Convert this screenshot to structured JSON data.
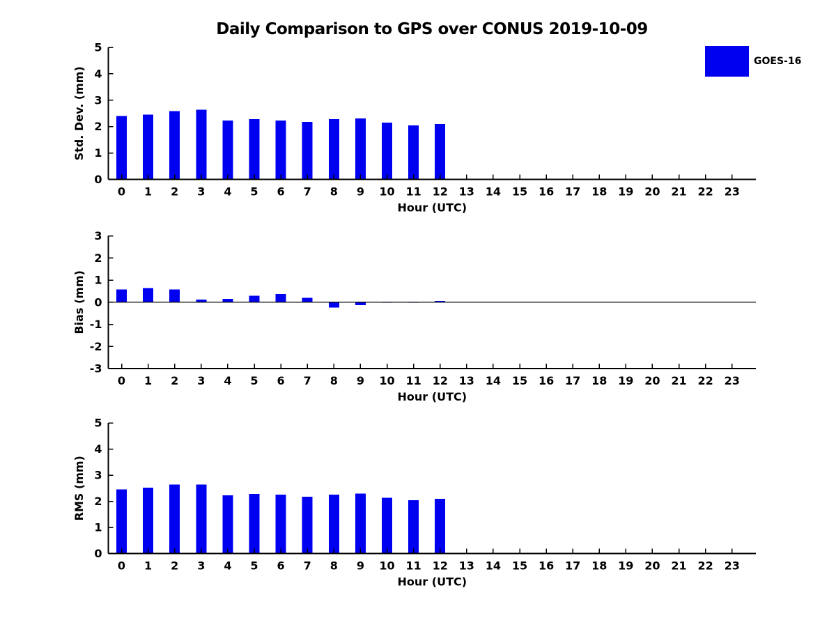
{
  "title": "Daily Comparison to GPS over CONUS 2019-10-09",
  "legend": {
    "label": "GOES-16"
  },
  "colors": {
    "bar": "#0000f0",
    "axis": "#000000",
    "text": "#000000",
    "background": "#ffffff"
  },
  "chart_data": [
    {
      "id": "std-dev",
      "type": "bar",
      "title": "Daily Comparison to GPS over CONUS 2019-10-09",
      "series_name": "GOES-16",
      "legend_position": "top-right",
      "xlabel": "Hour (UTC)",
      "ylabel": "Std. Dev. (mm)",
      "xlim": [
        -0.5,
        23.9
      ],
      "ylim": [
        0,
        5
      ],
      "yticks": [
        0,
        1,
        2,
        3,
        4,
        5
      ],
      "grid": false,
      "categories": [
        "0",
        "1",
        "2",
        "3",
        "4",
        "5",
        "6",
        "7",
        "8",
        "9",
        "10",
        "11",
        "12",
        "13",
        "14",
        "15",
        "16",
        "17",
        "18",
        "19",
        "20",
        "21",
        "22",
        "23"
      ],
      "values": [
        2.4,
        2.46,
        2.58,
        2.64,
        2.23,
        2.28,
        2.23,
        2.18,
        2.28,
        2.31,
        2.15,
        2.04,
        2.1,
        null,
        null,
        null,
        null,
        null,
        null,
        null,
        null,
        null,
        null,
        null
      ]
    },
    {
      "id": "bias",
      "type": "bar",
      "series_name": "GOES-16",
      "xlabel": "Hour (UTC)",
      "ylabel": "Bias (mm)",
      "xlim": [
        -0.5,
        23.9
      ],
      "ylim": [
        -3,
        3
      ],
      "yticks": [
        -3,
        -2,
        -1,
        0,
        1,
        2,
        3
      ],
      "zero_line": true,
      "grid": false,
      "categories": [
        "0",
        "1",
        "2",
        "3",
        "4",
        "5",
        "6",
        "7",
        "8",
        "9",
        "10",
        "11",
        "12",
        "13",
        "14",
        "15",
        "16",
        "17",
        "18",
        "19",
        "20",
        "21",
        "22",
        "23"
      ],
      "values": [
        0.57,
        0.63,
        0.57,
        0.12,
        0.15,
        0.29,
        0.37,
        0.19,
        -0.25,
        -0.13,
        0.0,
        -0.02,
        0.05,
        null,
        null,
        null,
        null,
        null,
        null,
        null,
        null,
        null,
        null,
        null
      ]
    },
    {
      "id": "rms",
      "type": "bar",
      "series_name": "GOES-16",
      "xlabel": "Hour (UTC)",
      "ylabel": "RMS (mm)",
      "xlim": [
        -0.5,
        23.9
      ],
      "ylim": [
        0,
        5
      ],
      "yticks": [
        0,
        1,
        2,
        3,
        4,
        5
      ],
      "grid": false,
      "categories": [
        "0",
        "1",
        "2",
        "3",
        "4",
        "5",
        "6",
        "7",
        "8",
        "9",
        "10",
        "11",
        "12",
        "13",
        "14",
        "15",
        "16",
        "17",
        "18",
        "19",
        "20",
        "21",
        "22",
        "23"
      ],
      "values": [
        2.46,
        2.52,
        2.64,
        2.64,
        2.23,
        2.28,
        2.25,
        2.18,
        2.26,
        2.29,
        2.13,
        2.04,
        2.1,
        null,
        null,
        null,
        null,
        null,
        null,
        null,
        null,
        null,
        null,
        null
      ]
    }
  ]
}
